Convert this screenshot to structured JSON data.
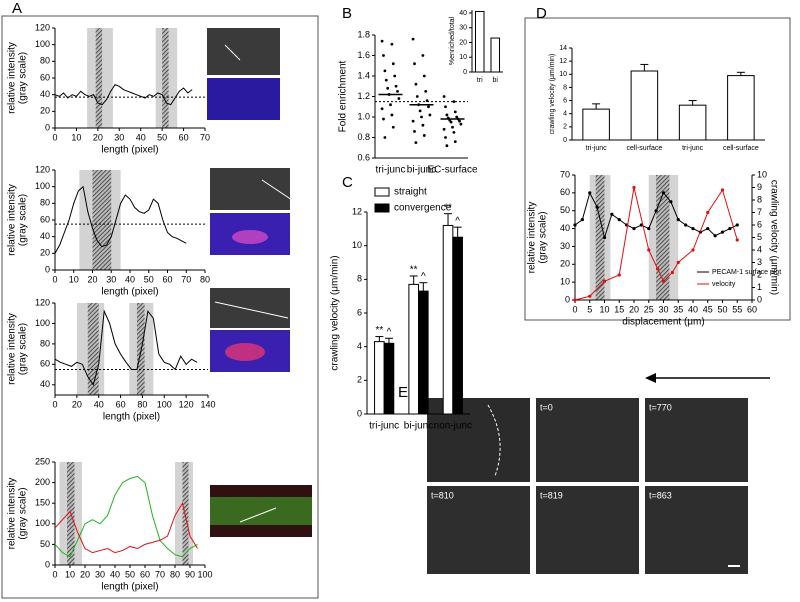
{
  "figure": {
    "panel_labels": [
      "A",
      "B",
      "C",
      "D",
      "E"
    ],
    "timepoints": [
      "t=0",
      "t=770",
      "t=810",
      "t=819",
      "t=863"
    ]
  },
  "chart_data": [
    {
      "type": "line",
      "xlabel": "length (pixel)",
      "ylabel": [
        "relative intensity",
        "(gray scale)"
      ],
      "xlim": [
        0,
        70
      ],
      "xticks": [
        0,
        10,
        20,
        30,
        40,
        50,
        60,
        70
      ],
      "ylim": [
        0,
        120
      ],
      "yticks": [
        0,
        20,
        40,
        60,
        80,
        100,
        120
      ],
      "reference_line": 37,
      "bands": [
        {
          "gray": [
            15,
            27
          ],
          "hatch": [
            19,
            22
          ]
        },
        {
          "gray": [
            47,
            57
          ],
          "hatch": [
            50,
            53
          ]
        }
      ],
      "series": [
        {
          "color": "#000000",
          "x": [
            0,
            2,
            4,
            6,
            8,
            10,
            12,
            14,
            16,
            18,
            20,
            22,
            24,
            26,
            28,
            30,
            32,
            34,
            36,
            38,
            40,
            42,
            44,
            46,
            48,
            50,
            52,
            54,
            56,
            58,
            60,
            62,
            64
          ],
          "values": [
            40,
            38,
            42,
            36,
            40,
            38,
            44,
            40,
            38,
            40,
            30,
            28,
            34,
            44,
            52,
            50,
            46,
            44,
            42,
            40,
            38,
            36,
            40,
            38,
            42,
            40,
            30,
            28,
            36,
            44,
            48,
            42,
            46
          ]
        }
      ]
    },
    {
      "type": "line",
      "xlabel": "length (pixel)",
      "ylabel": [
        "relative intensity",
        "(gray scale)"
      ],
      "xlim": [
        0,
        80
      ],
      "xticks": [
        0,
        10,
        20,
        30,
        40,
        50,
        60,
        70,
        80
      ],
      "ylim": [
        0,
        120
      ],
      "yticks": [
        0,
        20,
        40,
        60,
        80,
        100,
        120
      ],
      "reference_line": 55,
      "bands": [
        {
          "gray": [
            13,
            35
          ],
          "hatch": [
            20,
            30
          ]
        }
      ],
      "series": [
        {
          "color": "#000000",
          "x": [
            0,
            2.5,
            5,
            7.5,
            10,
            12.5,
            15,
            17.5,
            20,
            22.5,
            25,
            27.5,
            30,
            32.5,
            35,
            37.5,
            40,
            42.5,
            45,
            47.5,
            50,
            52.5,
            55,
            57.5,
            60,
            62.5,
            65,
            67.5,
            70
          ],
          "values": [
            20,
            30,
            45,
            60,
            80,
            95,
            100,
            70,
            50,
            35,
            28,
            30,
            40,
            60,
            80,
            90,
            85,
            75,
            70,
            68,
            72,
            85,
            80,
            60,
            45,
            40,
            38,
            35,
            32
          ]
        }
      ]
    },
    {
      "type": "line",
      "xlabel": "length (pixel)",
      "ylabel": [
        "relative intensity",
        "(gray scale)"
      ],
      "xlim": [
        0,
        140
      ],
      "xticks": [
        0,
        20,
        40,
        60,
        80,
        100,
        120,
        140
      ],
      "ylim": [
        30,
        120
      ],
      "yticks": [
        40,
        60,
        80,
        100,
        120
      ],
      "reference_line": 55,
      "bands": [
        {
          "gray": [
            20,
            45
          ],
          "hatch": [
            30,
            40
          ]
        },
        {
          "gray": [
            68,
            90
          ],
          "hatch": [
            75,
            82
          ]
        }
      ],
      "series": [
        {
          "color": "#000000",
          "x": [
            0,
            5,
            10,
            15,
            20,
            25,
            30,
            35,
            40,
            45,
            50,
            55,
            60,
            65,
            70,
            75,
            80,
            85,
            90,
            95,
            100,
            105,
            110,
            115,
            120,
            125,
            130
          ],
          "values": [
            65,
            62,
            60,
            58,
            62,
            60,
            48,
            40,
            60,
            112,
            100,
            80,
            70,
            62,
            55,
            55,
            80,
            112,
            105,
            70,
            62,
            60,
            55,
            68,
            60,
            65,
            62
          ]
        }
      ]
    },
    {
      "type": "line",
      "xlabel": "length (pixel)",
      "ylabel": [
        "relative intensity",
        "(gray scale)"
      ],
      "xlim": [
        0,
        100
      ],
      "xticks": [
        0,
        10,
        20,
        30,
        40,
        50,
        60,
        70,
        80,
        90,
        100
      ],
      "ylim": [
        0,
        250
      ],
      "yticks": [
        0,
        50,
        100,
        150,
        200,
        250
      ],
      "bands": [
        {
          "gray": [
            3,
            18
          ],
          "hatch": [
            8,
            13
          ]
        },
        {
          "gray": [
            80,
            92
          ],
          "hatch": [
            85,
            89
          ]
        }
      ],
      "series": [
        {
          "color": "#1fb31f",
          "x": [
            0,
            5,
            10,
            15,
            20,
            25,
            30,
            35,
            40,
            45,
            50,
            55,
            60,
            65,
            70,
            75,
            80,
            85,
            90,
            95
          ],
          "values": [
            50,
            30,
            20,
            60,
            100,
            110,
            100,
            120,
            170,
            200,
            210,
            215,
            200,
            120,
            60,
            40,
            25,
            20,
            40,
            50
          ]
        },
        {
          "color": "#e01010",
          "x": [
            0,
            5,
            10,
            15,
            20,
            25,
            30,
            35,
            40,
            45,
            50,
            55,
            60,
            65,
            70,
            75,
            80,
            85,
            90,
            95
          ],
          "values": [
            90,
            110,
            130,
            80,
            40,
            30,
            35,
            40,
            30,
            35,
            45,
            40,
            50,
            55,
            60,
            70,
            120,
            150,
            70,
            40
          ]
        }
      ]
    },
    {
      "type": "strip",
      "ylabel": [
        "Fold enrichment"
      ],
      "categories": [
        "tri-junc",
        "bi-junc",
        "EC-surface"
      ],
      "ylim": [
        0.6,
        1.8
      ],
      "yticks": [
        0.6,
        0.8,
        {
          "value": 1,
          "label": "1.0"
        },
        1.2,
        1.4,
        1.6,
        1.8
      ],
      "reference_line": 1.15,
      "means": [
        1.22,
        1.12,
        0.98
      ],
      "values": [
        [
          1.74,
          1.71,
          1.6,
          1.52,
          1.45,
          1.4,
          1.36,
          1.3,
          1.28,
          1.25,
          1.22,
          1.18,
          1.12,
          1.08,
          1.02,
          0.98,
          0.9,
          0.8
        ],
        [
          1.76,
          1.6,
          1.52,
          1.4,
          1.32,
          1.25,
          1.2,
          1.16,
          1.12,
          1.1,
          1.06,
          1.02,
          1,
          0.96,
          0.92,
          0.86,
          0.82,
          0.75
        ],
        [
          1.2,
          1.15,
          1.1,
          1.05,
          1.02,
          1,
          0.99,
          0.98,
          0.97,
          0.96,
          0.95,
          0.93,
          0.9,
          0.88,
          0.85,
          0.8,
          0.76,
          0.72
        ]
      ]
    },
    {
      "type": "bar",
      "ylabel": [
        "%enriched/total"
      ],
      "categories": [
        "tri",
        "bi"
      ],
      "ylim": [
        0,
        42
      ],
      "yticks": [
        0,
        10,
        20,
        30,
        40
      ],
      "series": [
        {
          "color": "#ffffff",
          "values": [
            41,
            23
          ]
        }
      ]
    },
    {
      "type": "bar",
      "ylabel": [
        "crawling velocity (μm/min)"
      ],
      "categories": [
        "tri-junc",
        "bi-junc",
        "non-junc"
      ],
      "ylim": [
        0,
        12
      ],
      "yticks": [
        0,
        2,
        4,
        6,
        8,
        10,
        12
      ],
      "series": [
        {
          "name": "straight",
          "color": "#ffffff",
          "values": [
            4.3,
            7.7,
            11.2
          ],
          "errors": [
            0.3,
            0.5,
            0.7
          ],
          "significance": [
            "**",
            "**",
            "**"
          ]
        },
        {
          "name": "convergence",
          "color": "#000000",
          "values": [
            4.2,
            7.3,
            10.5
          ],
          "errors": [
            0.3,
            0.5,
            0.6
          ],
          "significance": [
            "^",
            "^",
            "^"
          ]
        }
      ]
    },
    {
      "type": "bar",
      "ylabel": [
        "crawling velocity (μm/min)"
      ],
      "categories": [
        "tri-junc",
        "cell-surface",
        "tri-junc",
        "cell-surface"
      ],
      "ylim": [
        0,
        14
      ],
      "yticks": [
        0,
        2,
        4,
        6,
        8,
        10,
        12,
        14
      ],
      "series": [
        {
          "color": "#ffffff",
          "values": [
            4.7,
            10.5,
            5.3,
            9.8
          ],
          "errors": [
            0.8,
            1,
            0.7,
            0.5
          ]
        }
      ]
    },
    {
      "type": "line",
      "xlabel": "displacement (μm)",
      "ylabel": [
        "relative intensity",
        "(gray scale)"
      ],
      "y2label": "crawling velocity (μm/min)",
      "xlim": [
        0,
        60
      ],
      "xticks": [
        0,
        5,
        10,
        15,
        20,
        25,
        30,
        35,
        40,
        45,
        50,
        55,
        60
      ],
      "ylim": [
        0,
        70
      ],
      "yticks": [
        0,
        10,
        20,
        30,
        40,
        50,
        60,
        70
      ],
      "y2lim": [
        0,
        10
      ],
      "y2ticks": [
        0,
        1,
        2,
        3,
        4,
        5,
        6,
        7,
        8,
        9,
        10
      ],
      "markers": true,
      "bands": [
        {
          "gray": [
            5,
            12
          ],
          "hatch": [
            7,
            10
          ]
        },
        {
          "gray": [
            25,
            35
          ],
          "hatch": [
            27.5,
            32
          ]
        }
      ],
      "series": [
        {
          "name": "PECAM-1 surface plot",
          "color": "#000000",
          "x": [
            0,
            2.5,
            5,
            7.5,
            10,
            12.5,
            15,
            17.5,
            20,
            22.5,
            25,
            27.5,
            30,
            32.5,
            35,
            37.5,
            40,
            42.5,
            45,
            47.5,
            50,
            52.5,
            55
          ],
          "values": [
            42,
            45,
            60,
            52,
            35,
            48,
            45,
            42,
            40,
            42,
            40,
            50,
            60,
            55,
            45,
            42,
            40,
            38,
            40,
            36,
            38,
            40,
            42
          ]
        },
        {
          "name": "velocity",
          "color": "#e01010",
          "axis": "y2",
          "x": [
            0,
            5,
            10,
            15,
            20,
            25,
            28,
            30,
            33,
            35,
            40,
            45,
            50,
            55
          ],
          "values": [
            0,
            0.3,
            1.5,
            2,
            9,
            4,
            2.5,
            1.5,
            2.2,
            3,
            4,
            7,
            8.8,
            4.8
          ]
        }
      ]
    }
  ]
}
